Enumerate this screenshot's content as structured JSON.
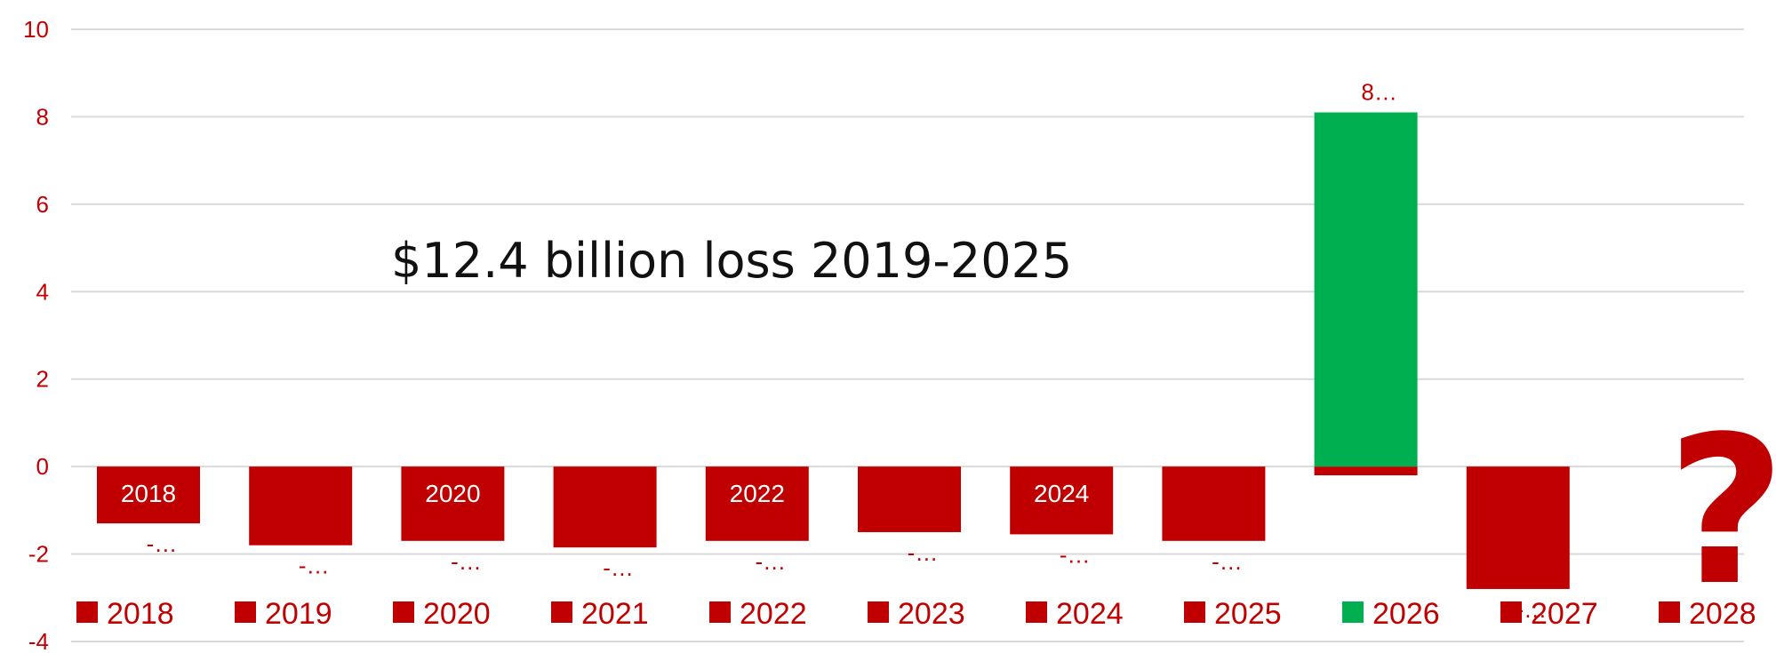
{
  "chart_data": {
    "type": "bar",
    "title": "",
    "xlabel": "",
    "ylabel": "",
    "ylim": [
      -4,
      10
    ],
    "yticks": [
      "10",
      "8",
      "6",
      "4",
      "2",
      "0",
      "-2",
      "-4"
    ],
    "ytick_values": [
      10,
      8,
      6,
      4,
      2,
      0,
      -2,
      -4
    ],
    "grid": true,
    "legend_placement": "bottom",
    "categories": [
      "2018",
      "2019",
      "2020",
      "2021",
      "2022",
      "2023",
      "2024",
      "2025",
      "2026",
      "2027",
      "2028"
    ],
    "values": [
      -1.3,
      -1.8,
      -1.7,
      -1.85,
      -1.7,
      -1.5,
      -1.55,
      -1.7,
      -0.2,
      -2.8,
      null
    ],
    "overlay_values": [
      null,
      null,
      null,
      null,
      null,
      null,
      null,
      null,
      8.1,
      null,
      null
    ],
    "bar_labels": [
      "2018",
      "",
      "2020",
      "",
      "2022",
      "",
      "2024",
      "",
      "",
      "",
      ""
    ],
    "data_labels": [
      "-…",
      "-…",
      "-…",
      "-…",
      "-…",
      "-…",
      "-…",
      "-…",
      "8…",
      "-…",
      ""
    ],
    "legend": [
      "2018",
      "2019",
      "2020",
      "2021",
      "2022",
      "2023",
      "2024",
      "2025",
      "2026",
      "2027",
      "2028"
    ],
    "annotation": "$12.4 billion loss 2019-2025",
    "question_mark": "?",
    "colors": {
      "negative": "#c00000",
      "positive": "#00b050",
      "axis_text": "#c00000",
      "grid": "#d9d9d9"
    }
  }
}
